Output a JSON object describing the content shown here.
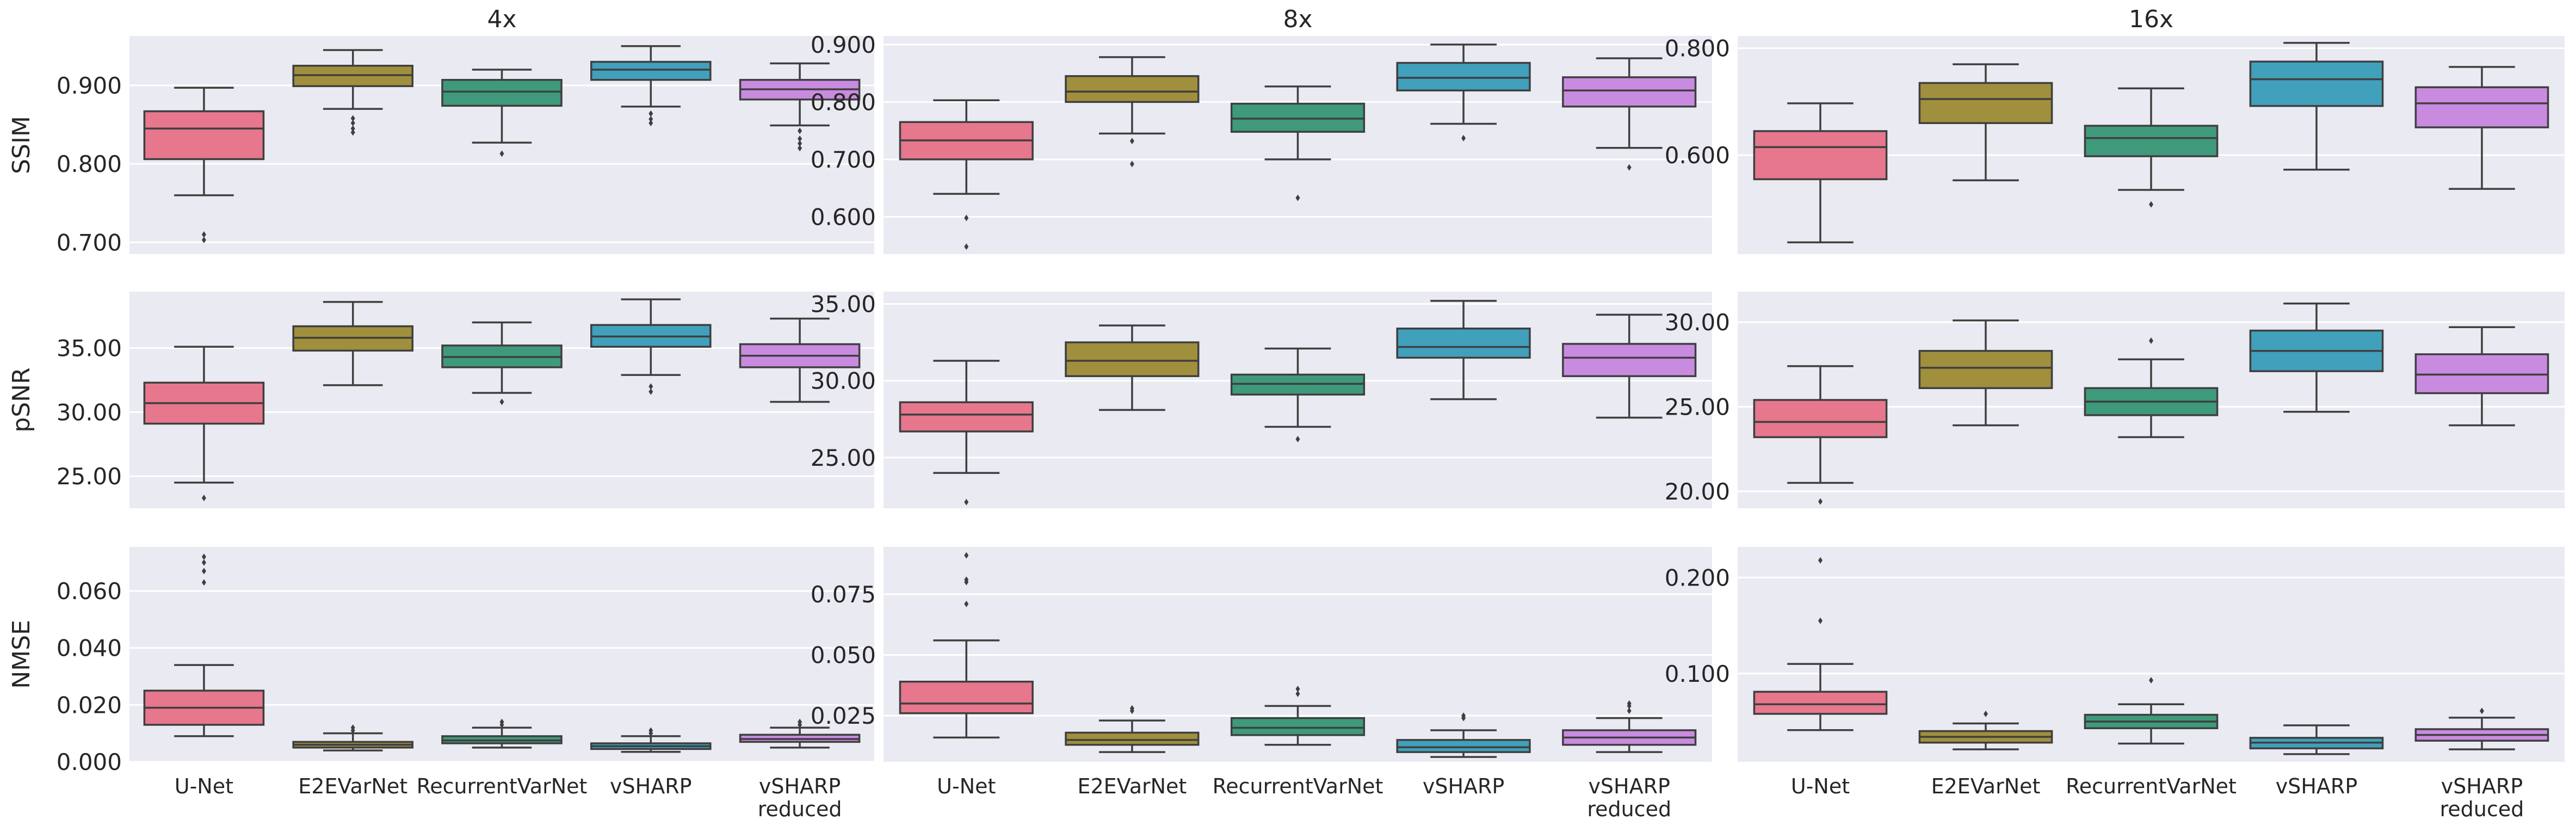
{
  "chart_data": {
    "type": "box",
    "layout": "3x3 grid of box plots",
    "col_titles": [
      "4x",
      "8x",
      "16x"
    ],
    "row_labels": [
      "SSIM",
      "pSNR",
      "NMSE"
    ],
    "categories": [
      "U-Net",
      "E2EVarNet",
      "RecurrentVarNet",
      "vSHARP",
      "vSHARP reduced"
    ],
    "category_label_lines": [
      [
        "U-Net"
      ],
      [
        "E2EVarNet"
      ],
      [
        "RecurrentVarNet"
      ],
      [
        "vSHARP"
      ],
      [
        "vSHARP",
        "reduced"
      ]
    ],
    "series_colors": [
      "#e6778d",
      "#a08f3d",
      "#3e9a7a",
      "#41a0bc",
      "#c98be0"
    ],
    "panels": [
      {
        "row": 0,
        "col": 0,
        "metric": "SSIM",
        "acceleration": "4x",
        "ylim": [
          0.685,
          0.963
        ],
        "yticks": [
          {
            "v": 0.7,
            "label": "0.700"
          },
          {
            "v": 0.8,
            "label": "0.800"
          },
          {
            "v": 0.9,
            "label": "0.900"
          }
        ],
        "boxes": [
          {
            "lo": 0.76,
            "q1": 0.806,
            "med": 0.845,
            "q3": 0.867,
            "hi": 0.897,
            "outliers": [
              0.71,
              0.703
            ]
          },
          {
            "lo": 0.87,
            "q1": 0.899,
            "med": 0.913,
            "q3": 0.925,
            "hi": 0.945,
            "outliers": [
              0.858,
              0.852,
              0.845,
              0.84
            ]
          },
          {
            "lo": 0.827,
            "q1": 0.874,
            "med": 0.892,
            "q3": 0.907,
            "hi": 0.92,
            "outliers": [
              0.813
            ]
          },
          {
            "lo": 0.873,
            "q1": 0.907,
            "med": 0.92,
            "q3": 0.93,
            "hi": 0.95,
            "outliers": [
              0.864,
              0.857,
              0.852
            ]
          },
          {
            "lo": 0.849,
            "q1": 0.882,
            "med": 0.895,
            "q3": 0.907,
            "hi": 0.928,
            "outliers": [
              0.842,
              0.832,
              0.826,
              0.82
            ]
          }
        ]
      },
      {
        "row": 0,
        "col": 1,
        "metric": "SSIM",
        "acceleration": "8x",
        "ylim": [
          0.535,
          0.915
        ],
        "yticks": [
          {
            "v": 0.6,
            "label": "0.600"
          },
          {
            "v": 0.7,
            "label": "0.700"
          },
          {
            "v": 0.8,
            "label": "0.800"
          },
          {
            "v": 0.9,
            "label": "0.900"
          }
        ],
        "boxes": [
          {
            "lo": 0.64,
            "q1": 0.7,
            "med": 0.733,
            "q3": 0.765,
            "hi": 0.803,
            "outliers": [
              0.598,
              0.548
            ]
          },
          {
            "lo": 0.745,
            "q1": 0.8,
            "med": 0.818,
            "q3": 0.845,
            "hi": 0.878,
            "outliers": [
              0.732,
              0.692
            ]
          },
          {
            "lo": 0.7,
            "q1": 0.748,
            "med": 0.771,
            "q3": 0.797,
            "hi": 0.827,
            "outliers": [
              0.633
            ]
          },
          {
            "lo": 0.762,
            "q1": 0.82,
            "med": 0.842,
            "q3": 0.868,
            "hi": 0.9,
            "outliers": [
              0.737
            ]
          },
          {
            "lo": 0.72,
            "q1": 0.792,
            "med": 0.82,
            "q3": 0.843,
            "hi": 0.876,
            "outliers": [
              0.686
            ]
          }
        ]
      },
      {
        "row": 0,
        "col": 2,
        "metric": "SSIM",
        "acceleration": "16x",
        "ylim": [
          0.415,
          0.823
        ],
        "yticks": [
          {
            "v": 0.6,
            "label": "0.600"
          },
          {
            "v": 0.8,
            "label": "0.800"
          }
        ],
        "boxes": [
          {
            "lo": 0.437,
            "q1": 0.555,
            "med": 0.615,
            "q3": 0.645,
            "hi": 0.697,
            "outliers": []
          },
          {
            "lo": 0.553,
            "q1": 0.66,
            "med": 0.705,
            "q3": 0.735,
            "hi": 0.77,
            "outliers": []
          },
          {
            "lo": 0.535,
            "q1": 0.598,
            "med": 0.632,
            "q3": 0.655,
            "hi": 0.725,
            "outliers": [
              0.508
            ]
          },
          {
            "lo": 0.573,
            "q1": 0.692,
            "med": 0.742,
            "q3": 0.775,
            "hi": 0.81,
            "outliers": []
          },
          {
            "lo": 0.537,
            "q1": 0.652,
            "med": 0.697,
            "q3": 0.727,
            "hi": 0.765,
            "outliers": []
          }
        ]
      },
      {
        "row": 1,
        "col": 0,
        "metric": "pSNR",
        "acceleration": "4x",
        "ylim": [
          22.5,
          39.4
        ],
        "yticks": [
          {
            "v": 25,
            "label": "25.00"
          },
          {
            "v": 30,
            "label": "30.00"
          },
          {
            "v": 35,
            "label": "35.00"
          }
        ],
        "boxes": [
          {
            "lo": 24.5,
            "q1": 29.1,
            "med": 30.7,
            "q3": 32.3,
            "hi": 35.1,
            "outliers": [
              23.3
            ]
          },
          {
            "lo": 32.1,
            "q1": 34.8,
            "med": 35.8,
            "q3": 36.7,
            "hi": 38.6,
            "outliers": []
          },
          {
            "lo": 31.5,
            "q1": 33.5,
            "med": 34.3,
            "q3": 35.2,
            "hi": 37.0,
            "outliers": [
              30.8
            ]
          },
          {
            "lo": 32.9,
            "q1": 35.1,
            "med": 35.9,
            "q3": 36.8,
            "hi": 38.8,
            "outliers": [
              32.0,
              31.6
            ]
          },
          {
            "lo": 30.8,
            "q1": 33.5,
            "med": 34.4,
            "q3": 35.3,
            "hi": 37.3,
            "outliers": []
          }
        ]
      },
      {
        "row": 1,
        "col": 1,
        "metric": "pSNR",
        "acceleration": "8x",
        "ylim": [
          21.7,
          35.8
        ],
        "yticks": [
          {
            "v": 25,
            "label": "25.00"
          },
          {
            "v": 30,
            "label": "30.00"
          },
          {
            "v": 35,
            "label": "35.00"
          }
        ],
        "boxes": [
          {
            "lo": 24.0,
            "q1": 26.7,
            "med": 27.8,
            "q3": 28.6,
            "hi": 31.3,
            "outliers": [
              22.1
            ]
          },
          {
            "lo": 28.1,
            "q1": 30.3,
            "med": 31.3,
            "q3": 32.5,
            "hi": 33.6,
            "outliers": []
          },
          {
            "lo": 27.0,
            "q1": 29.1,
            "med": 29.8,
            "q3": 30.4,
            "hi": 32.1,
            "outliers": [
              26.2
            ]
          },
          {
            "lo": 28.8,
            "q1": 31.5,
            "med": 32.2,
            "q3": 33.4,
            "hi": 35.2,
            "outliers": []
          },
          {
            "lo": 27.6,
            "q1": 30.3,
            "med": 31.5,
            "q3": 32.4,
            "hi": 34.3,
            "outliers": []
          }
        ]
      },
      {
        "row": 1,
        "col": 2,
        "metric": "pSNR",
        "acceleration": "16x",
        "ylim": [
          19.0,
          31.8
        ],
        "yticks": [
          {
            "v": 20,
            "label": "20.00"
          },
          {
            "v": 25,
            "label": "25.00"
          },
          {
            "v": 30,
            "label": "30.00"
          }
        ],
        "boxes": [
          {
            "lo": 20.5,
            "q1": 23.2,
            "med": 24.1,
            "q3": 25.4,
            "hi": 27.4,
            "outliers": [
              19.4
            ]
          },
          {
            "lo": 23.9,
            "q1": 26.1,
            "med": 27.3,
            "q3": 28.3,
            "hi": 30.1,
            "outliers": []
          },
          {
            "lo": 23.2,
            "q1": 24.5,
            "med": 25.3,
            "q3": 26.1,
            "hi": 27.8,
            "outliers": [
              28.9
            ]
          },
          {
            "lo": 24.7,
            "q1": 27.1,
            "med": 28.3,
            "q3": 29.5,
            "hi": 31.1,
            "outliers": []
          },
          {
            "lo": 23.9,
            "q1": 25.8,
            "med": 26.9,
            "q3": 28.1,
            "hi": 29.7,
            "outliers": []
          }
        ]
      },
      {
        "row": 2,
        "col": 0,
        "metric": "NMSE",
        "acceleration": "4x",
        "ylim": [
          0.0,
          0.0755
        ],
        "yticks": [
          {
            "v": 0.0,
            "label": "0.000"
          },
          {
            "v": 0.02,
            "label": "0.020"
          },
          {
            "v": 0.04,
            "label": "0.040"
          },
          {
            "v": 0.06,
            "label": "0.060"
          }
        ],
        "boxes": [
          {
            "lo": 0.009,
            "q1": 0.013,
            "med": 0.019,
            "q3": 0.025,
            "hi": 0.034,
            "outliers": [
              0.072,
              0.07,
              0.067,
              0.063
            ]
          },
          {
            "lo": 0.004,
            "q1": 0.005,
            "med": 0.006,
            "q3": 0.007,
            "hi": 0.01,
            "outliers": [
              0.012,
              0.011
            ]
          },
          {
            "lo": 0.005,
            "q1": 0.0065,
            "med": 0.0075,
            "q3": 0.009,
            "hi": 0.012,
            "outliers": [
              0.014,
              0.013
            ]
          },
          {
            "lo": 0.0035,
            "q1": 0.0045,
            "med": 0.0055,
            "q3": 0.0065,
            "hi": 0.009,
            "outliers": [
              0.011,
              0.01
            ]
          },
          {
            "lo": 0.005,
            "q1": 0.007,
            "med": 0.008,
            "q3": 0.0095,
            "hi": 0.012,
            "outliers": [
              0.014,
              0.013
            ]
          }
        ]
      },
      {
        "row": 2,
        "col": 1,
        "metric": "NMSE",
        "acceleration": "8x",
        "ylim": [
          0.006,
          0.0945
        ],
        "yticks": [
          {
            "v": 0.025,
            "label": "0.025"
          },
          {
            "v": 0.05,
            "label": "0.050"
          },
          {
            "v": 0.075,
            "label": "0.075"
          }
        ],
        "boxes": [
          {
            "lo": 0.016,
            "q1": 0.026,
            "med": 0.03,
            "q3": 0.039,
            "hi": 0.056,
            "outliers": [
              0.091,
              0.081,
              0.08,
              0.071
            ]
          },
          {
            "lo": 0.01,
            "q1": 0.013,
            "med": 0.015,
            "q3": 0.018,
            "hi": 0.023,
            "outliers": [
              0.028,
              0.027
            ]
          },
          {
            "lo": 0.013,
            "q1": 0.017,
            "med": 0.02,
            "q3": 0.024,
            "hi": 0.029,
            "outliers": [
              0.036,
              0.034
            ]
          },
          {
            "lo": 0.008,
            "q1": 0.01,
            "med": 0.012,
            "q3": 0.015,
            "hi": 0.019,
            "outliers": [
              0.025,
              0.024
            ]
          },
          {
            "lo": 0.01,
            "q1": 0.013,
            "med": 0.016,
            "q3": 0.019,
            "hi": 0.024,
            "outliers": [
              0.03,
              0.029,
              0.027
            ]
          }
        ]
      },
      {
        "row": 2,
        "col": 2,
        "metric": "NMSE",
        "acceleration": "16x",
        "ylim": [
          0.008,
          0.232
        ],
        "yticks": [
          {
            "v": 0.1,
            "label": "0.100"
          },
          {
            "v": 0.2,
            "label": "0.200"
          }
        ],
        "boxes": [
          {
            "lo": 0.041,
            "q1": 0.058,
            "med": 0.068,
            "q3": 0.081,
            "hi": 0.11,
            "outliers": [
              0.218,
              0.155
            ]
          },
          {
            "lo": 0.021,
            "q1": 0.028,
            "med": 0.034,
            "q3": 0.04,
            "hi": 0.048,
            "outliers": [
              0.058
            ]
          },
          {
            "lo": 0.027,
            "q1": 0.043,
            "med": 0.05,
            "q3": 0.057,
            "hi": 0.068,
            "outliers": [
              0.093
            ]
          },
          {
            "lo": 0.016,
            "q1": 0.022,
            "med": 0.028,
            "q3": 0.033,
            "hi": 0.046,
            "outliers": []
          },
          {
            "lo": 0.021,
            "q1": 0.03,
            "med": 0.036,
            "q3": 0.042,
            "hi": 0.054,
            "outliers": [
              0.061
            ]
          }
        ]
      }
    ]
  }
}
